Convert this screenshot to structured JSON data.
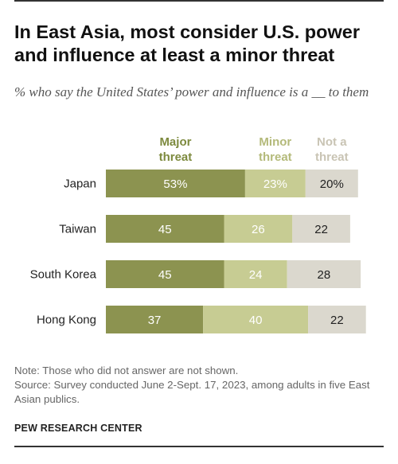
{
  "header": {
    "title": "In East Asia, most consider U.S. power and influence at least a minor threat",
    "subtitle": "% who say the United States’ power and influence is a __ to them"
  },
  "footer": {
    "note": "Note: Those who did not answer are not shown.",
    "source": "Source: Survey conducted June 2-Sept. 17, 2023, among adults in five East Asian publics.",
    "brand": "PEW RESEARCH CENTER"
  },
  "chart_data": {
    "type": "bar",
    "orientation": "horizontal",
    "stacked": true,
    "categories": [
      "Japan",
      "Taiwan",
      "South Korea",
      "Hong Kong"
    ],
    "series": [
      {
        "name": "Major threat",
        "values": [
          53,
          45,
          45,
          37
        ],
        "labels": [
          "53%",
          "45",
          "45",
          "37"
        ],
        "color": "#8c9350",
        "label_color": "#ffffff",
        "header_color": "#7d8a3e"
      },
      {
        "name": "Minor threat",
        "values": [
          23,
          26,
          24,
          40
        ],
        "labels": [
          "23%",
          "26",
          "24",
          "40"
        ],
        "color": "#c7cc93",
        "label_color": "#ffffff",
        "header_color": "#b4ba7a"
      },
      {
        "name": "Not a threat",
        "values": [
          20,
          22,
          28,
          22
        ],
        "labels": [
          "20%",
          "22",
          "28",
          "22"
        ],
        "color": "#dbd8ce",
        "label_color": "#222222",
        "header_color": "#c9c4b4"
      }
    ],
    "xlim": [
      0,
      100
    ],
    "legend": "top, inline above bars",
    "grid": false
  }
}
